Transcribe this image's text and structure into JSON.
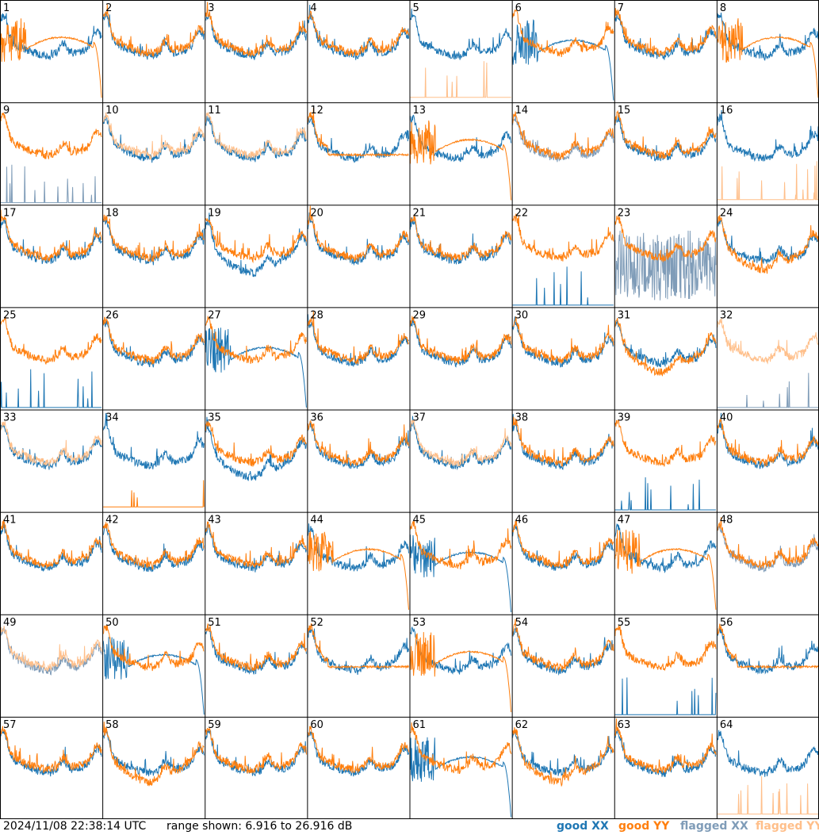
{
  "chart_data": {
    "type": "line",
    "grid": {
      "rows": 8,
      "cols": 8
    },
    "ylim": [
      6.916,
      26.916
    ],
    "legend_placement": "bottom-right",
    "series_styles": {
      "good_xx": {
        "color": "#1f77b4"
      },
      "good_yy": {
        "color": "#ff7f0e"
      },
      "flagged_xx": {
        "color": "#7f9cb8"
      },
      "flagged_yy": {
        "color": "#ffbf8a"
      }
    },
    "panels": [
      {
        "label": "1",
        "xx": "good",
        "yy": "good",
        "xx_shape": "normal",
        "yy_shape": "droop"
      },
      {
        "label": "2",
        "xx": "good",
        "yy": "good",
        "xx_shape": "normal",
        "yy_shape": "normal"
      },
      {
        "label": "3",
        "xx": "good",
        "yy": "good",
        "xx_shape": "normal",
        "yy_shape": "normal"
      },
      {
        "label": "4",
        "xx": "good",
        "yy": "good",
        "xx_shape": "normal",
        "yy_shape": "normal"
      },
      {
        "label": "5",
        "xx": "good",
        "yy": "flagged",
        "xx_shape": "normal",
        "yy_shape": "dead"
      },
      {
        "label": "6",
        "xx": "good",
        "yy": "good",
        "xx_shape": "droop",
        "yy_shape": "normal"
      },
      {
        "label": "7",
        "xx": "good",
        "yy": "good",
        "xx_shape": "normal",
        "yy_shape": "normal"
      },
      {
        "label": "8",
        "xx": "good",
        "yy": "good",
        "xx_shape": "normal",
        "yy_shape": "droop"
      },
      {
        "label": "9",
        "xx": "flagged",
        "yy": "good",
        "xx_shape": "dead",
        "yy_shape": "normal"
      },
      {
        "label": "10",
        "xx": "good",
        "yy": "flagged",
        "xx_shape": "normal",
        "yy_shape": "normal"
      },
      {
        "label": "11",
        "xx": "good",
        "yy": "flagged",
        "xx_shape": "normal",
        "yy_shape": "normal"
      },
      {
        "label": "12",
        "xx": "good",
        "yy": "good",
        "xx_shape": "normal",
        "yy_shape": "flat"
      },
      {
        "label": "13",
        "xx": "good",
        "yy": "good",
        "xx_shape": "normal",
        "yy_shape": "droop"
      },
      {
        "label": "14",
        "xx": "flagged",
        "yy": "good",
        "xx_shape": "normal",
        "yy_shape": "normal"
      },
      {
        "label": "15",
        "xx": "good",
        "yy": "good",
        "xx_shape": "normal",
        "yy_shape": "normal"
      },
      {
        "label": "16",
        "xx": "good",
        "yy": "flagged",
        "xx_shape": "normal",
        "yy_shape": "dead"
      },
      {
        "label": "17",
        "xx": "good",
        "yy": "good",
        "xx_shape": "normal",
        "yy_shape": "normal"
      },
      {
        "label": "18",
        "xx": "good",
        "yy": "good",
        "xx_shape": "normal",
        "yy_shape": "normal"
      },
      {
        "label": "19",
        "xx": "good",
        "yy": "good",
        "xx_shape": "deep",
        "yy_shape": "normal"
      },
      {
        "label": "20",
        "xx": "good",
        "yy": "good",
        "xx_shape": "normal",
        "yy_shape": "normal"
      },
      {
        "label": "21",
        "xx": "good",
        "yy": "good",
        "xx_shape": "normal",
        "yy_shape": "normal"
      },
      {
        "label": "22",
        "xx": "good",
        "yy": "good",
        "xx_shape": "dead",
        "yy_shape": "normal"
      },
      {
        "label": "23",
        "xx": "flagged",
        "yy": "good",
        "xx_shape": "noisy",
        "yy_shape": "normal"
      },
      {
        "label": "24",
        "xx": "good",
        "yy": "good",
        "xx_shape": "normal",
        "yy_shape": "deep"
      },
      {
        "label": "25",
        "xx": "good",
        "yy": "good",
        "xx_shape": "dead",
        "yy_shape": "normal"
      },
      {
        "label": "26",
        "xx": "good",
        "yy": "good",
        "xx_shape": "normal",
        "yy_shape": "normal"
      },
      {
        "label": "27",
        "xx": "good",
        "yy": "good",
        "xx_shape": "droop",
        "yy_shape": "normal"
      },
      {
        "label": "28",
        "xx": "good",
        "yy": "good",
        "xx_shape": "normal",
        "yy_shape": "normal"
      },
      {
        "label": "29",
        "xx": "good",
        "yy": "good",
        "xx_shape": "normal",
        "yy_shape": "normal"
      },
      {
        "label": "30",
        "xx": "good",
        "yy": "good",
        "xx_shape": "normal",
        "yy_shape": "normal"
      },
      {
        "label": "31",
        "xx": "good",
        "yy": "good",
        "xx_shape": "normal",
        "yy_shape": "deep"
      },
      {
        "label": "32",
        "xx": "flagged",
        "yy": "flagged",
        "xx_shape": "dead",
        "yy_shape": "normal"
      },
      {
        "label": "33",
        "xx": "good",
        "yy": "flagged",
        "xx_shape": "normal",
        "yy_shape": "normal"
      },
      {
        "label": "34",
        "xx": "good",
        "yy": "good",
        "xx_shape": "normal",
        "yy_shape": "dead"
      },
      {
        "label": "35",
        "xx": "good",
        "yy": "good",
        "xx_shape": "deep",
        "yy_shape": "normal"
      },
      {
        "label": "36",
        "xx": "good",
        "yy": "good",
        "xx_shape": "normal",
        "yy_shape": "normal"
      },
      {
        "label": "37",
        "xx": "good",
        "yy": "flagged",
        "xx_shape": "normal",
        "yy_shape": "normal"
      },
      {
        "label": "38",
        "xx": "good",
        "yy": "good",
        "xx_shape": "normal",
        "yy_shape": "normal"
      },
      {
        "label": "39",
        "xx": "good",
        "yy": "good",
        "xx_shape": "dead",
        "yy_shape": "normal"
      },
      {
        "label": "40",
        "xx": "good",
        "yy": "good",
        "xx_shape": "normal",
        "yy_shape": "normal"
      },
      {
        "label": "41",
        "xx": "good",
        "yy": "good",
        "xx_shape": "normal",
        "yy_shape": "normal"
      },
      {
        "label": "42",
        "xx": "good",
        "yy": "good",
        "xx_shape": "normal",
        "yy_shape": "normal"
      },
      {
        "label": "43",
        "xx": "good",
        "yy": "good",
        "xx_shape": "normal",
        "yy_shape": "normal"
      },
      {
        "label": "44",
        "xx": "good",
        "yy": "good",
        "xx_shape": "normal",
        "yy_shape": "droop"
      },
      {
        "label": "45",
        "xx": "good",
        "yy": "good",
        "xx_shape": "droop",
        "yy_shape": "normal"
      },
      {
        "label": "46",
        "xx": "good",
        "yy": "good",
        "xx_shape": "normal",
        "yy_shape": "normal"
      },
      {
        "label": "47",
        "xx": "good",
        "yy": "good",
        "xx_shape": "normal",
        "yy_shape": "droop"
      },
      {
        "label": "48",
        "xx": "flagged",
        "yy": "good",
        "xx_shape": "normal",
        "yy_shape": "normal"
      },
      {
        "label": "49",
        "xx": "flagged",
        "yy": "flagged",
        "xx_shape": "normal",
        "yy_shape": "normal"
      },
      {
        "label": "50",
        "xx": "good",
        "yy": "good",
        "xx_shape": "droop",
        "yy_shape": "normal"
      },
      {
        "label": "51",
        "xx": "good",
        "yy": "good",
        "xx_shape": "normal",
        "yy_shape": "normal"
      },
      {
        "label": "52",
        "xx": "good",
        "yy": "good",
        "xx_shape": "normal",
        "yy_shape": "flat"
      },
      {
        "label": "53",
        "xx": "good",
        "yy": "good",
        "xx_shape": "normal",
        "yy_shape": "droop"
      },
      {
        "label": "54",
        "xx": "good",
        "yy": "good",
        "xx_shape": "normal",
        "yy_shape": "normal"
      },
      {
        "label": "55",
        "xx": "good",
        "yy": "good",
        "xx_shape": "dead",
        "yy_shape": "normal"
      },
      {
        "label": "56",
        "xx": "good",
        "yy": "good",
        "xx_shape": "normal",
        "yy_shape": "flat"
      },
      {
        "label": "57",
        "xx": "good",
        "yy": "good",
        "xx_shape": "normal",
        "yy_shape": "normal"
      },
      {
        "label": "58",
        "xx": "good",
        "yy": "good",
        "xx_shape": "normal",
        "yy_shape": "deep"
      },
      {
        "label": "59",
        "xx": "good",
        "yy": "good",
        "xx_shape": "normal",
        "yy_shape": "normal"
      },
      {
        "label": "60",
        "xx": "good",
        "yy": "good",
        "xx_shape": "normal",
        "yy_shape": "normal"
      },
      {
        "label": "61",
        "xx": "good",
        "yy": "good",
        "xx_shape": "droop",
        "yy_shape": "normal"
      },
      {
        "label": "62",
        "xx": "good",
        "yy": "good",
        "xx_shape": "normal",
        "yy_shape": "deep"
      },
      {
        "label": "63",
        "xx": "good",
        "yy": "good",
        "xx_shape": "normal",
        "yy_shape": "normal"
      },
      {
        "label": "64",
        "xx": "good",
        "yy": "flagged",
        "xx_shape": "normal",
        "yy_shape": "dead"
      }
    ]
  },
  "footer": {
    "timestamp": "2024/11/08 22:38:14 UTC",
    "range": "range shown: 6.916 to 26.916 dB",
    "legend": {
      "good_xx": "good XX",
      "good_yy": "good YY",
      "flagged_xx": "flagged XX",
      "flagged_yy": "flagged YY"
    }
  }
}
